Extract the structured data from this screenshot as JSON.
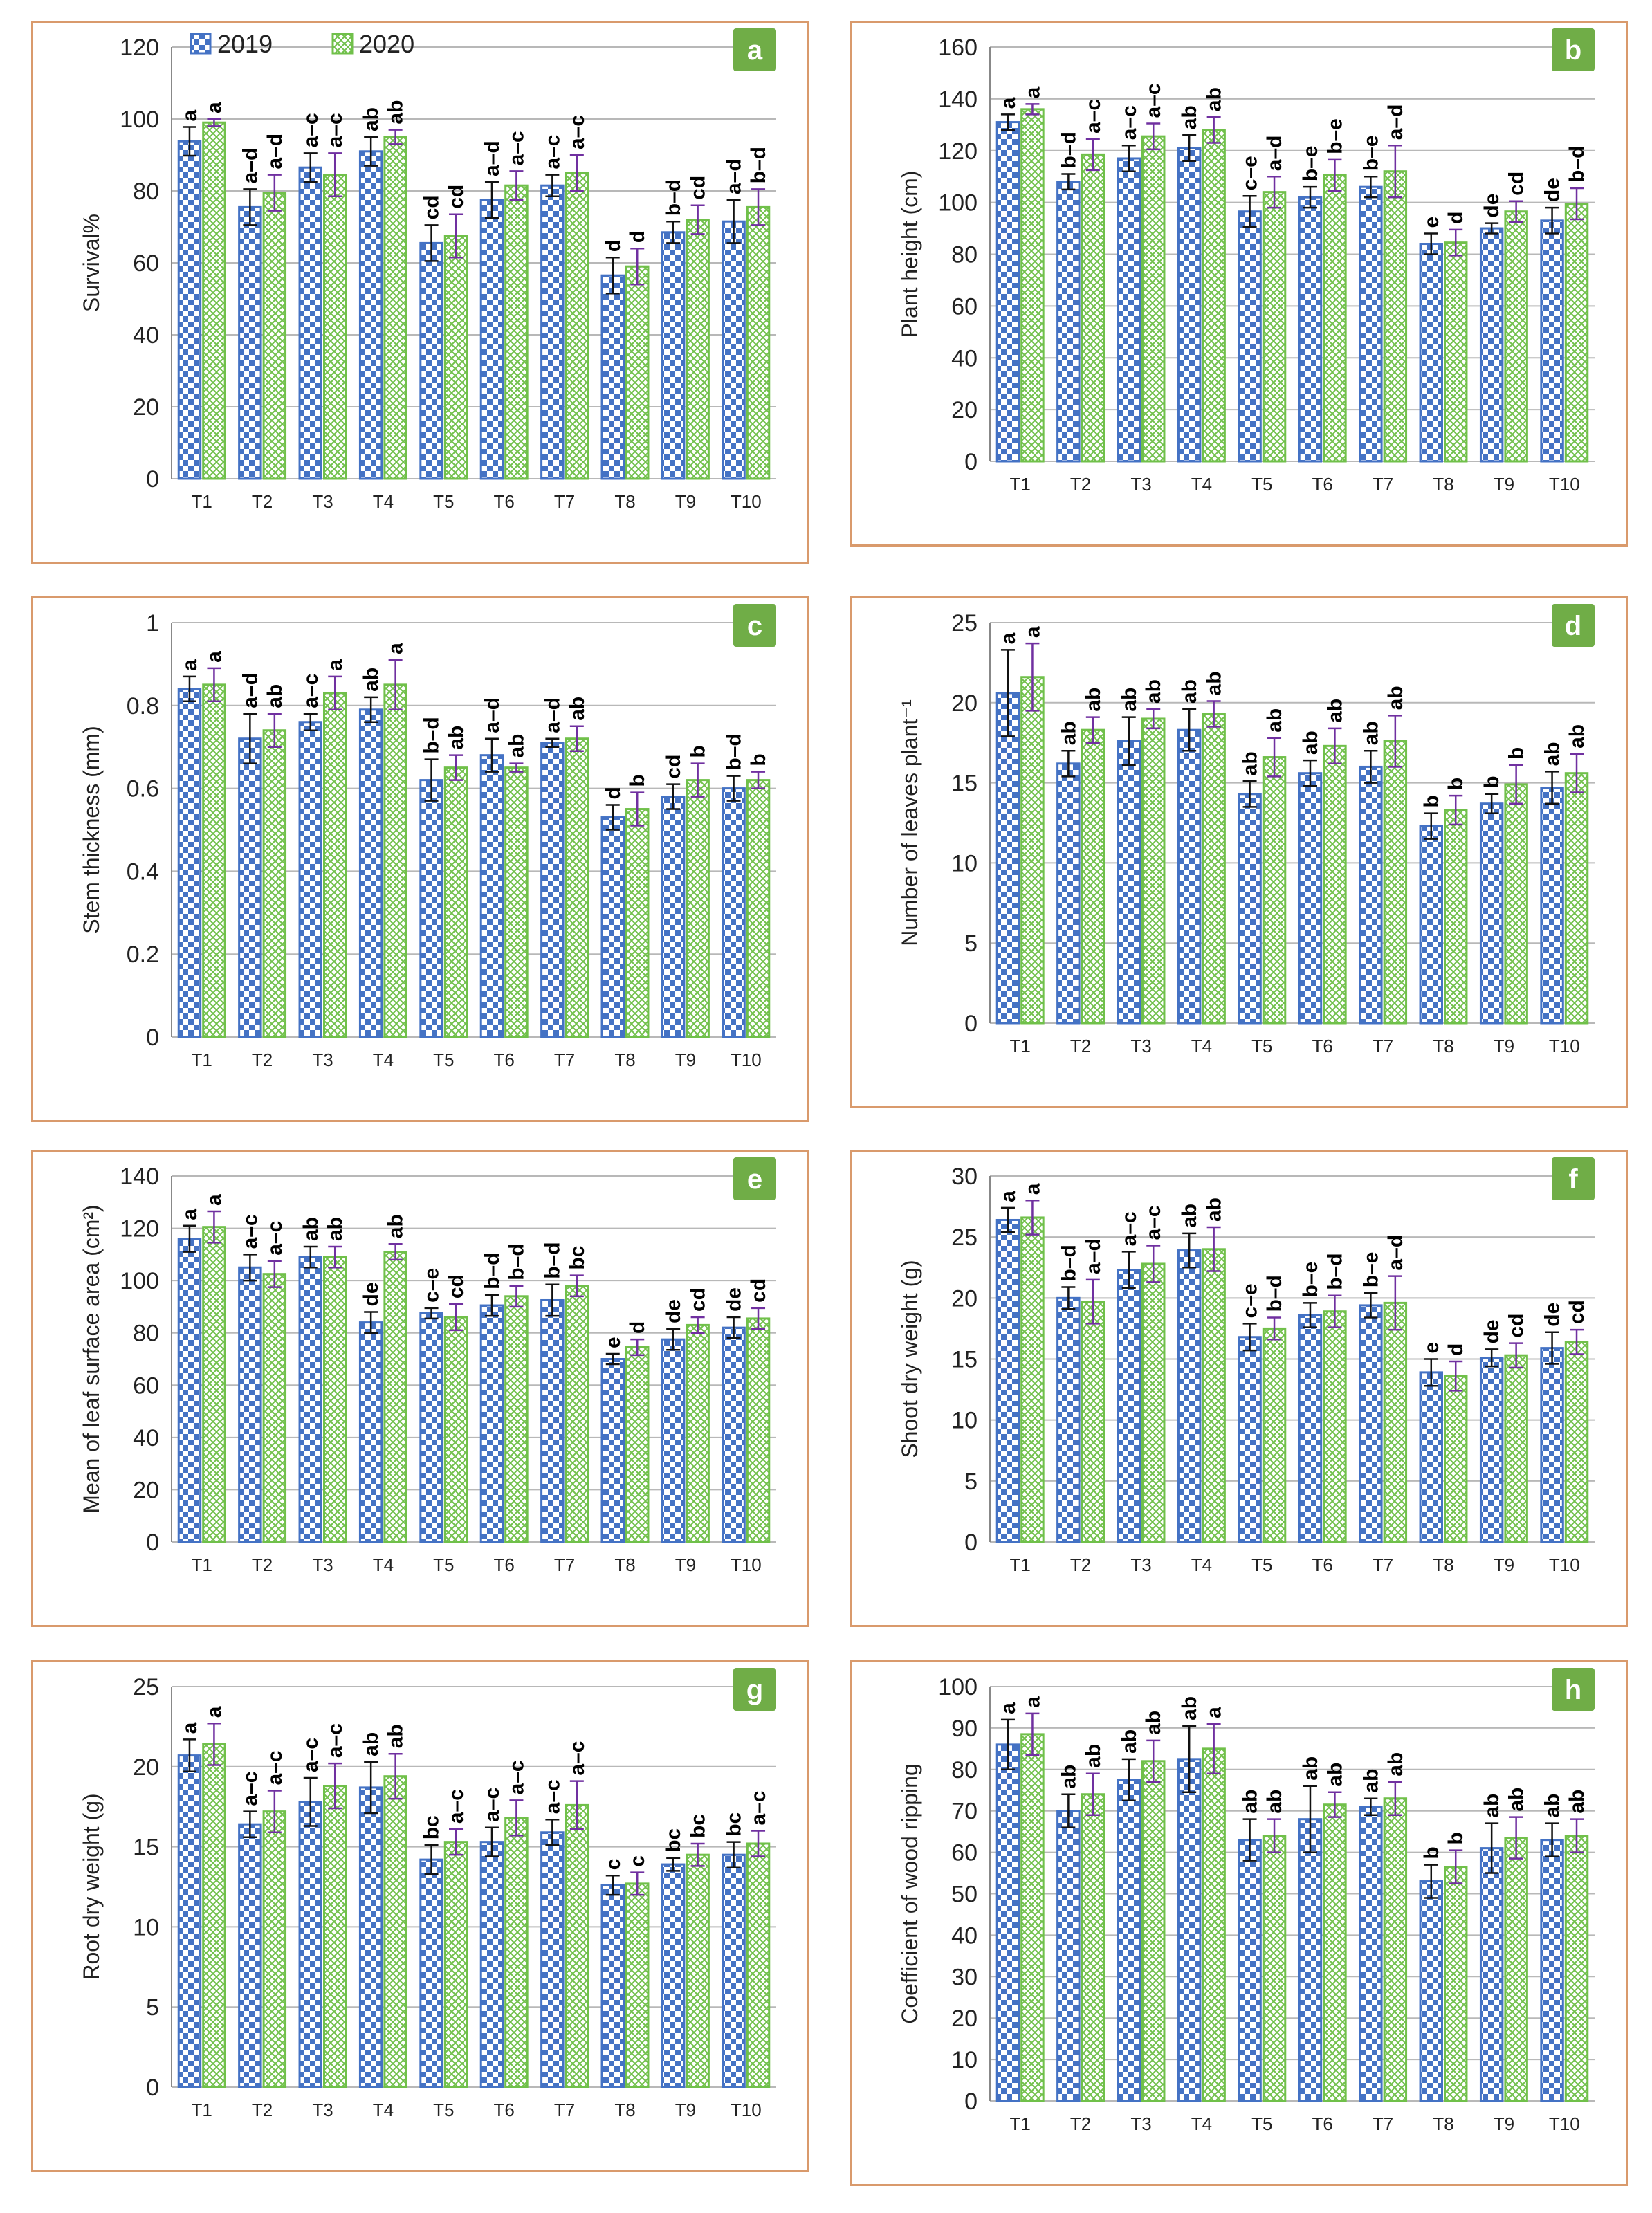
{
  "legend": {
    "series": [
      "2019",
      "2020"
    ]
  },
  "colors": {
    "s2019": "#4472c4",
    "s2020": "#70c04a",
    "err2019": "#111111",
    "err2020": "#7030a0",
    "badge": "#70ad47",
    "grid": "#b8b8b8",
    "border": "#d99a6c"
  },
  "chart_data": [
    {
      "id": "a",
      "type": "bar",
      "panel_label": "a",
      "ylabel": "Survival%",
      "ylim": [
        0,
        120
      ],
      "yticks": [
        "0",
        "20",
        "40",
        "60",
        "80",
        "100",
        "120"
      ],
      "categories": [
        "T1",
        "T2",
        "T3",
        "T4",
        "T5",
        "T6",
        "T7",
        "T8",
        "T9",
        "T10"
      ],
      "series": [
        {
          "name": "2019",
          "values": [
            93.8,
            75.5,
            86.5,
            91,
            65.5,
            77.5,
            81.5,
            56.5,
            68.5,
            71.5
          ],
          "errors": [
            4,
            5,
            4,
            4,
            5,
            5,
            3,
            5,
            3,
            6
          ],
          "letters": [
            "a",
            "a–d",
            "a–c",
            "ab",
            "cd",
            "a–d",
            "a–c",
            "d",
            "b–d",
            "a–d"
          ]
        },
        {
          "name": "2020",
          "values": [
            99,
            79.5,
            84.5,
            95,
            67.5,
            81.5,
            85,
            59,
            72,
            75.5
          ],
          "errors": [
            1,
            5,
            6,
            2,
            6,
            4,
            5,
            5,
            4,
            5
          ],
          "letters": [
            "a",
            "a–d",
            "a–c",
            "ab",
            "cd",
            "a–c",
            "a–c",
            "d",
            "cd",
            "b–d"
          ]
        }
      ]
    },
    {
      "id": "b",
      "type": "bar",
      "panel_label": "b",
      "ylabel": "Plant height (cm)",
      "ylim": [
        0,
        160
      ],
      "yticks": [
        "0",
        "20",
        "40",
        "60",
        "80",
        "100",
        "120",
        "140",
        "160"
      ],
      "categories": [
        "T1",
        "T2",
        "T3",
        "T4",
        "T5",
        "T6",
        "T7",
        "T8",
        "T9",
        "T10"
      ],
      "series": [
        {
          "name": "2019",
          "values": [
            131,
            108,
            117,
            121,
            96.5,
            102,
            106,
            84,
            90,
            93
          ],
          "errors": [
            3,
            3,
            5,
            5,
            6,
            4,
            4,
            4,
            2,
            5
          ],
          "letters": [
            "a",
            "b–d",
            "a–c",
            "ab",
            "c–e",
            "b–e",
            "b–e",
            "e",
            "de",
            "de"
          ]
        },
        {
          "name": "2020",
          "values": [
            136,
            118.5,
            125.5,
            128,
            104,
            110.5,
            112,
            84.5,
            96.5,
            99.5
          ],
          "errors": [
            2,
            6,
            5,
            5,
            6,
            6,
            10,
            5,
            4,
            6
          ],
          "letters": [
            "a",
            "a–c",
            "a–c",
            "ab",
            "a–d",
            "b–e",
            "a–d",
            "d",
            "cd",
            "b–d"
          ]
        }
      ]
    },
    {
      "id": "c",
      "type": "bar",
      "panel_label": "c",
      "ylabel": "Stem thickness (mm)",
      "ylim": [
        0,
        1
      ],
      "yticks": [
        "0",
        "0.2",
        "0.4",
        "0.6",
        "0.8",
        "1"
      ],
      "categories": [
        "T1",
        "T2",
        "T3",
        "T4",
        "T5",
        "T6",
        "T7",
        "T8",
        "T9",
        "T10"
      ],
      "series": [
        {
          "name": "2019",
          "values": [
            0.84,
            0.72,
            0.76,
            0.79,
            0.62,
            0.68,
            0.71,
            0.53,
            0.58,
            0.6
          ],
          "errors": [
            0.03,
            0.06,
            0.02,
            0.03,
            0.05,
            0.04,
            0.01,
            0.03,
            0.03,
            0.03
          ],
          "letters": [
            "a",
            "a–d",
            "a–c",
            "ab",
            "b–d",
            "a–d",
            "a–d",
            "d",
            "cd",
            "b–d"
          ]
        },
        {
          "name": "2020",
          "values": [
            0.85,
            0.74,
            0.83,
            0.85,
            0.65,
            0.65,
            0.72,
            0.55,
            0.62,
            0.62
          ],
          "errors": [
            0.04,
            0.04,
            0.04,
            0.06,
            0.03,
            0.01,
            0.03,
            0.04,
            0.04,
            0.02
          ],
          "letters": [
            "a",
            "ab",
            "a",
            "a",
            "ab",
            "ab",
            "ab",
            "b",
            "b",
            "b"
          ]
        }
      ]
    },
    {
      "id": "d",
      "type": "bar",
      "panel_label": "d",
      "ylabel": "Number of leaves plant⁻¹",
      "ylim": [
        0,
        25
      ],
      "yticks": [
        "0",
        "5",
        "10",
        "15",
        "20",
        "25"
      ],
      "categories": [
        "T1",
        "T2",
        "T3",
        "T4",
        "T5",
        "T6",
        "T7",
        "T8",
        "T9",
        "T10"
      ],
      "series": [
        {
          "name": "2019",
          "values": [
            20.6,
            16.2,
            17.6,
            18.3,
            14.3,
            15.6,
            16,
            12.3,
            13.7,
            14.7
          ],
          "errors": [
            2.7,
            0.8,
            1.5,
            1.3,
            0.8,
            0.8,
            1.0,
            0.8,
            0.6,
            1.0
          ],
          "letters": [
            "a",
            "ab",
            "ab",
            "ab",
            "ab",
            "ab",
            "ab",
            "b",
            "b",
            "ab"
          ]
        },
        {
          "name": "2020",
          "values": [
            21.6,
            18.3,
            19,
            19.3,
            16.6,
            17.3,
            17.6,
            13.3,
            14.9,
            15.6
          ],
          "errors": [
            2.1,
            0.8,
            0.6,
            0.8,
            1.2,
            1.1,
            1.6,
            0.9,
            1.2,
            1.2
          ],
          "letters": [
            "a",
            "ab",
            "ab",
            "ab",
            "ab",
            "ab",
            "ab",
            "b",
            "b",
            "ab"
          ]
        }
      ]
    },
    {
      "id": "e",
      "type": "bar",
      "panel_label": "e",
      "ylabel": "Mean of leaf surface area (cm²)",
      "ylim": [
        0,
        140
      ],
      "yticks": [
        "0",
        "20",
        "40",
        "60",
        "80",
        "100",
        "120",
        "140"
      ],
      "categories": [
        "T1",
        "T2",
        "T3",
        "T4",
        "T5",
        "T6",
        "T7",
        "T8",
        "T9",
        "T10"
      ],
      "series": [
        {
          "name": "2019",
          "values": [
            116,
            105,
            109,
            84,
            87.5,
            90.5,
            92.5,
            70,
            77.5,
            82
          ],
          "errors": [
            5,
            5,
            4,
            4,
            2,
            4,
            6,
            2,
            4,
            4
          ],
          "letters": [
            "a",
            "a–c",
            "ab",
            "de",
            "c–e",
            "b–d",
            "b–d",
            "e",
            "de",
            "de"
          ]
        },
        {
          "name": "2020",
          "values": [
            120.5,
            102.5,
            109,
            111,
            86,
            94,
            98,
            74.5,
            83,
            85.5
          ],
          "errors": [
            6,
            5,
            4,
            3,
            5,
            4,
            4,
            3,
            3,
            4
          ],
          "letters": [
            "a",
            "a–c",
            "ab",
            "ab",
            "cd",
            "b–d",
            "bc",
            "d",
            "cd",
            "cd"
          ]
        }
      ]
    },
    {
      "id": "f",
      "type": "bar",
      "panel_label": "f",
      "ylabel": "Shoot dry weight (g)",
      "ylim": [
        0,
        30
      ],
      "yticks": [
        "0",
        "5",
        "10",
        "15",
        "20",
        "25",
        "30"
      ],
      "categories": [
        "T1",
        "T2",
        "T3",
        "T4",
        "T5",
        "T6",
        "T7",
        "T8",
        "T9",
        "T10"
      ],
      "series": [
        {
          "name": "2019",
          "values": [
            26.4,
            20,
            22.3,
            23.9,
            16.8,
            18.6,
            19.4,
            13.9,
            15.1,
            15.9
          ],
          "errors": [
            1.0,
            0.9,
            1.5,
            1.4,
            1.1,
            1.0,
            1.0,
            1.1,
            0.7,
            1.3
          ],
          "letters": [
            "a",
            "b–d",
            "a–c",
            "ab",
            "c–e",
            "b–e",
            "b–e",
            "e",
            "de",
            "de"
          ]
        },
        {
          "name": "2020",
          "values": [
            26.6,
            19.7,
            22.8,
            24,
            17.5,
            18.9,
            19.6,
            13.6,
            15.3,
            16.4
          ],
          "errors": [
            1.4,
            1.8,
            1.5,
            1.8,
            0.9,
            1.3,
            2.2,
            1.2,
            1.0,
            1.0
          ],
          "letters": [
            "a",
            "a–d",
            "a–c",
            "ab",
            "b–d",
            "b–d",
            "a–d",
            "d",
            "cd",
            "cd"
          ]
        }
      ]
    },
    {
      "id": "g",
      "type": "bar",
      "panel_label": "g",
      "ylabel": "Root dry weight (g)",
      "ylim": [
        0,
        25
      ],
      "yticks": [
        "0",
        "5",
        "10",
        "15",
        "20",
        "25"
      ],
      "categories": [
        "T1",
        "T2",
        "T3",
        "T4",
        "T5",
        "T6",
        "T7",
        "T8",
        "T9",
        "T10"
      ],
      "series": [
        {
          "name": "2019",
          "values": [
            20.7,
            16.4,
            17.8,
            18.7,
            14.2,
            15.3,
            15.9,
            12.6,
            13.9,
            14.5
          ],
          "errors": [
            1.0,
            0.8,
            1.5,
            1.6,
            0.9,
            0.9,
            0.8,
            0.6,
            0.4,
            0.8
          ],
          "letters": [
            "a",
            "a–c",
            "a–c",
            "ab",
            "bc",
            "a–c",
            "a–c",
            "c",
            "bc",
            "bc"
          ]
        },
        {
          "name": "2020",
          "values": [
            21.4,
            17.2,
            18.8,
            19.4,
            15.3,
            16.8,
            17.6,
            12.7,
            14.5,
            15.2
          ],
          "errors": [
            1.3,
            1.3,
            1.4,
            1.4,
            0.8,
            1.1,
            1.5,
            0.7,
            0.7,
            0.8
          ],
          "letters": [
            "a",
            "a–c",
            "a–c",
            "ab",
            "a–c",
            "a–c",
            "a–c",
            "c",
            "bc",
            "a–c"
          ]
        }
      ]
    },
    {
      "id": "h",
      "type": "bar",
      "panel_label": "h",
      "ylabel": "Coefficient of wood ripping",
      "ylim": [
        0,
        100
      ],
      "yticks": [
        "0",
        "10",
        "20",
        "30",
        "40",
        "50",
        "60",
        "70",
        "80",
        "90",
        "100"
      ],
      "categories": [
        "T1",
        "T2",
        "T3",
        "T4",
        "T5",
        "T6",
        "T7",
        "T8",
        "T9",
        "T10"
      ],
      "series": [
        {
          "name": "2019",
          "values": [
            86,
            70,
            77.5,
            82.5,
            63,
            68,
            71,
            53,
            61,
            63
          ],
          "errors": [
            6,
            4,
            5,
            8,
            5,
            8,
            2,
            4,
            6,
            4
          ],
          "letters": [
            "a",
            "ab",
            "ab",
            "ab",
            "ab",
            "ab",
            "ab",
            "b",
            "ab",
            "ab"
          ]
        },
        {
          "name": "2020",
          "values": [
            88.5,
            74,
            82,
            85,
            64,
            71.5,
            73,
            56.5,
            63.5,
            64
          ],
          "errors": [
            5,
            5,
            5,
            6,
            4,
            3,
            4,
            4,
            5,
            4
          ],
          "letters": [
            "a",
            "ab",
            "ab",
            "a",
            "ab",
            "ab",
            "ab",
            "b",
            "ab",
            "ab"
          ]
        }
      ]
    }
  ]
}
